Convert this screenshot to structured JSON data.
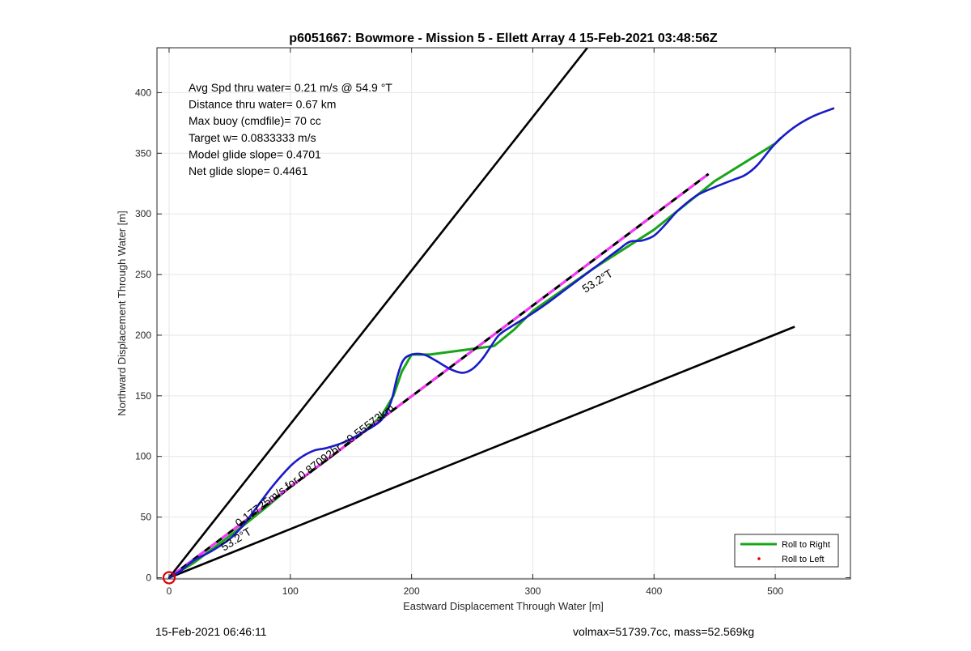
{
  "footer": {
    "timestamp": "15-Feb-2021 06:46:11",
    "volmax_mass": "volmax=51739.7cc, mass=52.569kg"
  },
  "chart_data": {
    "type": "line",
    "title": "p6051667: Bowmore - Mission 5 - Ellett Array 4 15-Feb-2021 03:48:56Z",
    "xlabel": "Eastward Displacement Through Water [m]",
    "ylabel": "Northward Displacement Through Water [m]",
    "xlim": [
      -10,
      562
    ],
    "ylim": [
      -1,
      437
    ],
    "xticks": [
      0,
      100,
      200,
      300,
      400,
      500
    ],
    "yticks": [
      0,
      50,
      100,
      150,
      200,
      250,
      300,
      350,
      400
    ],
    "grid": true,
    "legend_position": "bottom-right",
    "legend": [
      {
        "label": "Roll to Right",
        "style": "line",
        "color": "#19a519"
      },
      {
        "label": "Roll to Left",
        "style": "dot",
        "color": "#e00000"
      }
    ],
    "info_lines": [
      "Avg Spd thru water=  0.21 m/s @  54.9 °T",
      "Distance thru water=  0.67 km",
      "Max buoy (cmdfile)= 70 cc",
      "Target w= 0.0833333 m/s",
      "Model glide slope= 0.4701",
      "Net glide slope= 0.4461"
    ],
    "annotations": [
      {
        "text": "53.2°T",
        "x": 355,
        "y": 242,
        "angle": 32
      },
      {
        "text": "53.2°T",
        "x": 57,
        "y": 29,
        "angle": 32
      },
      {
        "text": "0.17725m/s for 0.87092hr =0.55573km",
        "x": 122,
        "y": 90,
        "angle": 37
      }
    ],
    "series": [
      {
        "name": "Roll to Right",
        "color": "#19a519",
        "x": [
          0,
          20,
          40,
          60,
          80,
          100,
          130,
          160,
          175,
          185,
          192,
          200,
          215,
          268,
          285,
          300,
          350,
          400,
          450,
          500,
          505
        ],
        "y": [
          0,
          12,
          27,
          42,
          58,
          75,
          97,
          120,
          133,
          150,
          170,
          184,
          184,
          191,
          205,
          220,
          255,
          287,
          327,
          358,
          363
        ]
      },
      {
        "name": "glider track",
        "color": "#1a1ac8",
        "x": [
          0,
          10,
          20,
          35,
          50,
          60,
          70,
          85,
          100,
          110,
          120,
          130,
          145,
          160,
          175,
          183,
          188,
          193,
          200,
          210,
          220,
          232,
          242,
          250,
          258,
          265,
          272,
          282,
          295,
          310,
          330,
          350,
          370,
          380,
          390,
          400,
          410,
          420,
          435,
          450,
          465,
          475,
          485,
          500,
          515,
          530,
          548
        ],
        "y": [
          0,
          6,
          14,
          22,
          32,
          42,
          55,
          75,
          92,
          100,
          105,
          107,
          112,
          120,
          130,
          145,
          165,
          179,
          184,
          184,
          179,
          172,
          169,
          172,
          180,
          190,
          200,
          207,
          215,
          225,
          240,
          255,
          270,
          277,
          278,
          282,
          292,
          303,
          315,
          322,
          328,
          332,
          340,
          358,
          371,
          380,
          387
        ]
      },
      {
        "name": "predicted track",
        "color": "#000000",
        "dash_color": "#ff33ff",
        "dashed": true,
        "x": [
          0,
          445
        ],
        "y": [
          0,
          333
        ]
      },
      {
        "name": "steep bound",
        "color": "#000000",
        "x": [
          0,
          345
        ],
        "y": [
          0,
          437
        ]
      },
      {
        "name": "shallow bound",
        "color": "#000000",
        "x": [
          0,
          516
        ],
        "y": [
          0,
          207
        ]
      }
    ],
    "start_marker": {
      "x": 0,
      "y": 0,
      "color": "#dd0000"
    }
  }
}
